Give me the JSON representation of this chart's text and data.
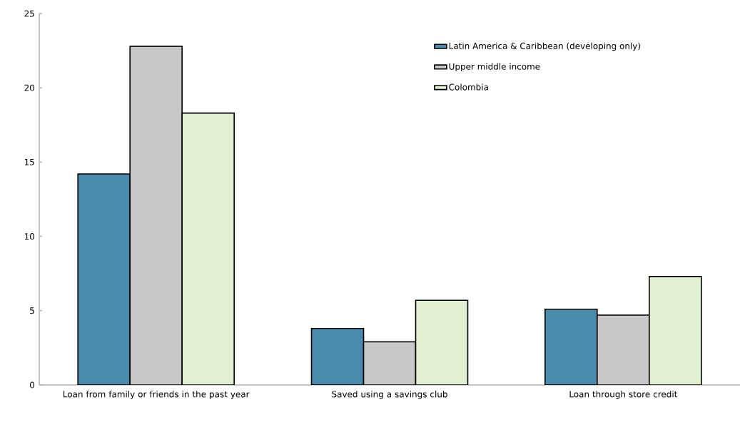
{
  "chart_data": {
    "type": "bar",
    "categories": [
      "Loan from family or friends in the past year",
      "Saved using a savings club",
      "Loan through store credit"
    ],
    "series": [
      {
        "name": "Latin America & Caribbean (developing only)",
        "color": "#4a8aab",
        "values": [
          14.2,
          3.8,
          5.1
        ]
      },
      {
        "name": "Upper middle income",
        "color": "#c8c8c8",
        "values": [
          22.8,
          2.9,
          4.7
        ]
      },
      {
        "name": "Colombia",
        "color": "#e2f0d2",
        "values": [
          18.3,
          5.7,
          7.3
        ]
      }
    ],
    "ylim": [
      0,
      25
    ],
    "yticks": [
      0,
      5,
      10,
      15,
      20,
      25
    ],
    "grid": false,
    "legend": "top right"
  }
}
